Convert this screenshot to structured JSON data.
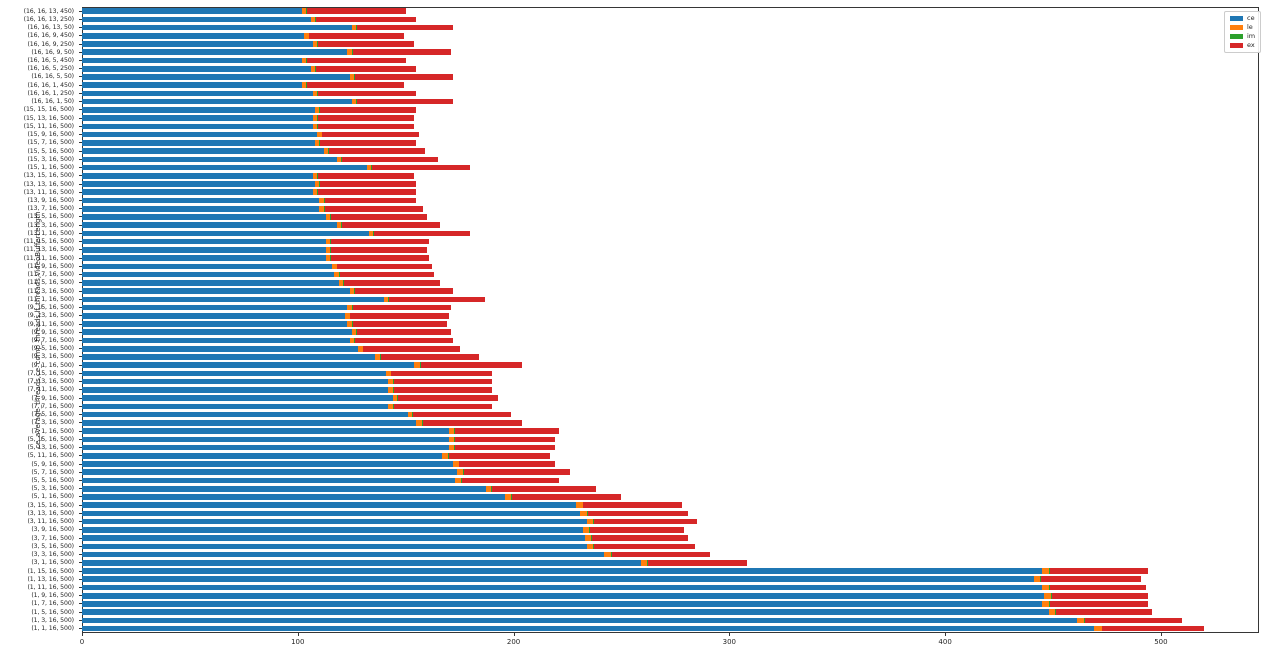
{
  "figure": {
    "background": "#ffffff"
  },
  "legend": {
    "entries": [
      {
        "label": "ce",
        "color": "#1f77b4"
      },
      {
        "label": "le",
        "color": "#ff7f0e"
      },
      {
        "label": "im",
        "color": "#2ca02c"
      },
      {
        "label": "ex",
        "color": "#d62728"
      }
    ]
  },
  "chart_data": {
    "type": "bar",
    "orientation": "horizontal",
    "stacked": true,
    "title": "",
    "xlabel": "",
    "ylabel": "ce_average_threads,ce_comp_threads,lf_threads,videoBufferLength",
    "xlim": [
      0,
      545
    ],
    "xticks": [
      0,
      100,
      200,
      300,
      400,
      500
    ],
    "grid": false,
    "legend_position": "upper right",
    "series_names": [
      "ce",
      "le",
      "im",
      "ex"
    ],
    "series_colors": [
      "#1f77b4",
      "#ff7f0e",
      "#2ca02c",
      "#d62728"
    ],
    "categories": [
      "(16, 16, 13, 450)",
      "(16, 16, 13, 250)",
      "(16, 16, 13, 50)",
      "(16, 16, 9, 450)",
      "(16, 16, 9, 250)",
      "(16, 16, 9, 50)",
      "(16, 16, 5, 450)",
      "(16, 16, 5, 250)",
      "(16, 16, 5, 50)",
      "(16, 16, 1, 450)",
      "(16, 16, 1, 250)",
      "(16, 16, 1, 50)",
      "(15, 15, 16, 500)",
      "(15, 13, 16, 500)",
      "(15, 11, 16, 500)",
      "(15, 9, 16, 500)",
      "(15, 7, 16, 500)",
      "(15, 5, 16, 500)",
      "(15, 3, 16, 500)",
      "(15, 1, 16, 500)",
      "(13, 15, 16, 500)",
      "(13, 13, 16, 500)",
      "(13, 11, 16, 500)",
      "(13, 9, 16, 500)",
      "(13, 7, 16, 500)",
      "(13, 5, 16, 500)",
      "(13, 3, 16, 500)",
      "(13, 1, 16, 500)",
      "(11, 15, 16, 500)",
      "(11, 13, 16, 500)",
      "(11, 11, 16, 500)",
      "(11, 9, 16, 500)",
      "(11, 7, 16, 500)",
      "(11, 5, 16, 500)",
      "(11, 3, 16, 500)",
      "(11, 1, 16, 500)",
      "(9, 15, 16, 500)",
      "(9, 13, 16, 500)",
      "(9, 11, 16, 500)",
      "(9, 9, 16, 500)",
      "(9, 7, 16, 500)",
      "(9, 5, 16, 500)",
      "(9, 3, 16, 500)",
      "(9, 1, 16, 500)",
      "(7, 15, 16, 500)",
      "(7, 13, 16, 500)",
      "(7, 11, 16, 500)",
      "(7, 9, 16, 500)",
      "(7, 7, 16, 500)",
      "(7, 5, 16, 500)",
      "(7, 3, 16, 500)",
      "(7, 1, 16, 500)",
      "(5, 15, 16, 500)",
      "(5, 13, 16, 500)",
      "(5, 11, 16, 500)",
      "(5, 9, 16, 500)",
      "(5, 7, 16, 500)",
      "(5, 5, 16, 500)",
      "(5, 3, 16, 500)",
      "(5, 1, 16, 500)",
      "(3, 15, 16, 500)",
      "(3, 13, 16, 500)",
      "(3, 11, 16, 500)",
      "(3, 9, 16, 500)",
      "(3, 7, 16, 500)",
      "(3, 5, 16, 500)",
      "(3, 3, 16, 500)",
      "(3, 1, 16, 500)",
      "(1, 15, 16, 500)",
      "(1, 13, 16, 500)",
      "(1, 11, 16, 500)",
      "(1, 9, 16, 500)",
      "(1, 7, 16, 500)",
      "(1, 5, 16, 500)",
      "(1, 3, 16, 500)",
      "(1, 1, 16, 500)"
    ],
    "values": [
      [
        102,
        2,
        0.4,
        45.6
      ],
      [
        106,
        2,
        0.4,
        46.6
      ],
      [
        125,
        2,
        0.4,
        44.6
      ],
      [
        103,
        2,
        0.4,
        43.6
      ],
      [
        107,
        2,
        0.4,
        44.6
      ],
      [
        123,
        2,
        0.4,
        45.6
      ],
      [
        102,
        2,
        0.4,
        45.6
      ],
      [
        106,
        2,
        0.4,
        46.6
      ],
      [
        124,
        2,
        0.4,
        45.6
      ],
      [
        102,
        2,
        0.4,
        44.6
      ],
      [
        107,
        2,
        0.4,
        45.6
      ],
      [
        125,
        2,
        0.4,
        44.6
      ],
      [
        108,
        2,
        0.4,
        44.6
      ],
      [
        107,
        2,
        0.4,
        44.6
      ],
      [
        107,
        2,
        0.4,
        44.6
      ],
      [
        109,
        2,
        0.4,
        44.6
      ],
      [
        108,
        2,
        0.4,
        44.6
      ],
      [
        112,
        2,
        0.4,
        44.6
      ],
      [
        118,
        2,
        0.4,
        44.6
      ],
      [
        132,
        2,
        0.4,
        45.6
      ],
      [
        107,
        2,
        0.4,
        44.6
      ],
      [
        108,
        2,
        0.4,
        44.6
      ],
      [
        107,
        2,
        0.4,
        45.6
      ],
      [
        110,
        2,
        0.4,
        42.6
      ],
      [
        110,
        2,
        0.4,
        45.6
      ],
      [
        113,
        2,
        0.4,
        44.6
      ],
      [
        118,
        2,
        0.4,
        45.6
      ],
      [
        133,
        2,
        0.4,
        44.6
      ],
      [
        113,
        2,
        0.4,
        45.6
      ],
      [
        113,
        2,
        0.4,
        44.6
      ],
      [
        113,
        2,
        0.4,
        45.6
      ],
      [
        116,
        2,
        0.4,
        43.6
      ],
      [
        117,
        2,
        0.4,
        43.6
      ],
      [
        119,
        2,
        0.4,
        44.6
      ],
      [
        124,
        2,
        0.4,
        45.6
      ],
      [
        140,
        2,
        0.4,
        44.6
      ],
      [
        123,
        2,
        0.4,
        45.6
      ],
      [
        122,
        2,
        0.4,
        45.6
      ],
      [
        123,
        2,
        0.4,
        43.6
      ],
      [
        125,
        2,
        0.4,
        43.6
      ],
      [
        124,
        2,
        0.4,
        45.6
      ],
      [
        128,
        2,
        0.4,
        44.6
      ],
      [
        136,
        2,
        0.4,
        45.6
      ],
      [
        154,
        2.5,
        0.4,
        47.1
      ],
      [
        141,
        2,
        0.4,
        46.6
      ],
      [
        142,
        2,
        0.4,
        45.6
      ],
      [
        142,
        2,
        0.4,
        45.6
      ],
      [
        144,
        2,
        0.4,
        46.6
      ],
      [
        142,
        2,
        0.4,
        45.6
      ],
      [
        151,
        2,
        0.4,
        45.6
      ],
      [
        155,
        2.5,
        0.4,
        46.1
      ],
      [
        170,
        2.5,
        0.4,
        48.1
      ],
      [
        170,
        2.5,
        0.4,
        46.1
      ],
      [
        170,
        2.5,
        0.4,
        46.1
      ],
      [
        167,
        2.5,
        0.4,
        47.1
      ],
      [
        172,
        2.5,
        0.4,
        44.1
      ],
      [
        174,
        2.5,
        0.4,
        49.1
      ],
      [
        173,
        2.5,
        0.4,
        45.1
      ],
      [
        187,
        2.5,
        0.4,
        48.1
      ],
      [
        196,
        3,
        0.4,
        50.6
      ],
      [
        229,
        3,
        0.4,
        45.6
      ],
      [
        231,
        3,
        0.4,
        46.6
      ],
      [
        234,
        3,
        0.4,
        47.6
      ],
      [
        232,
        3,
        0.4,
        43.6
      ],
      [
        233,
        3,
        0.4,
        44.6
      ],
      [
        234,
        3,
        0.4,
        46.6
      ],
      [
        242,
        3,
        0.4,
        45.6
      ],
      [
        259,
        3,
        0.4,
        45.6
      ],
      [
        445,
        3,
        0.4,
        45.6
      ],
      [
        441,
        3,
        0.4,
        46.6
      ],
      [
        445,
        3,
        0.4,
        44.6
      ],
      [
        446,
        3,
        0.4,
        44.6
      ],
      [
        445,
        3,
        0.4,
        45.6
      ],
      [
        448,
        3,
        0.4,
        44.6
      ],
      [
        461,
        3.5,
        0.4,
        45.1
      ],
      [
        469,
        3.5,
        0.4,
        47.1
      ]
    ]
  }
}
